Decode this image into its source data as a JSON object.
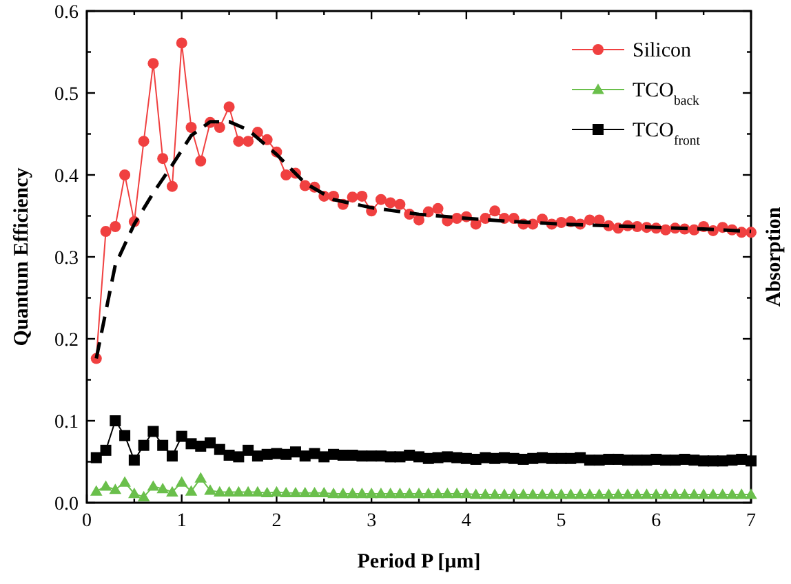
{
  "chart_data": {
    "type": "line",
    "xlabel": "Period P [µm]",
    "ylabel": "Quantum Efficiency",
    "y2label": "Absorption",
    "xlim": [
      0,
      7
    ],
    "xticks": [
      0,
      {
        "value": 0.5,
        "label": null
      },
      1,
      {
        "value": 1.5,
        "label": null
      },
      2,
      {
        "value": 2.5,
        "label": null
      },
      3,
      {
        "value": 3.5,
        "label": null
      },
      4,
      {
        "value": 4.5,
        "label": null
      },
      5,
      {
        "value": 5.5,
        "label": null
      },
      6,
      {
        "value": 6.5,
        "label": null
      },
      7
    ],
    "ylim": [
      0,
      0.6
    ],
    "yticks": [
      {
        "value": 0,
        "label": "0.0"
      },
      {
        "value": 0.05,
        "label": null
      },
      0.1,
      {
        "value": 0.15,
        "label": null
      },
      0.2,
      {
        "value": 0.25,
        "label": null
      },
      0.3,
      {
        "value": 0.35,
        "label": null
      },
      0.4,
      {
        "value": 0.45,
        "label": null
      },
      0.5,
      {
        "value": 0.55,
        "label": null
      },
      0.6
    ],
    "grid": false,
    "legend": "top right",
    "x": [
      0.1,
      0.2,
      0.3,
      0.4,
      0.5,
      0.6,
      0.7,
      0.8,
      0.9,
      1.0,
      1.1,
      1.2,
      1.3,
      1.4,
      1.5,
      1.6,
      1.7,
      1.8,
      1.9,
      2.0,
      2.1,
      2.2,
      2.3,
      2.4,
      2.5,
      2.6,
      2.7,
      2.8,
      2.9,
      3.0,
      3.1,
      3.2,
      3.3,
      3.4,
      3.5,
      3.6,
      3.7,
      3.8,
      3.9,
      4.0,
      4.1,
      4.2,
      4.3,
      4.4,
      4.5,
      4.6,
      4.7,
      4.8,
      4.9,
      5.0,
      5.1,
      5.2,
      5.3,
      5.4,
      5.5,
      5.6,
      5.7,
      5.8,
      5.9,
      6.0,
      6.1,
      6.2,
      6.3,
      6.4,
      6.5,
      6.6,
      6.7,
      6.8,
      6.9,
      7.0
    ],
    "series": [
      {
        "name": "Silicon",
        "color": "#f04040",
        "marker": "circle",
        "line_style": "solid",
        "values": [
          0.176,
          0.331,
          0.337,
          0.4,
          0.343,
          0.441,
          0.536,
          0.42,
          0.386,
          0.561,
          0.458,
          0.417,
          0.464,
          0.458,
          0.483,
          0.441,
          0.441,
          0.452,
          0.443,
          0.428,
          0.4,
          0.402,
          0.387,
          0.385,
          0.374,
          0.374,
          0.364,
          0.373,
          0.374,
          0.356,
          0.37,
          0.366,
          0.364,
          0.352,
          0.345,
          0.355,
          0.359,
          0.344,
          0.347,
          0.349,
          0.34,
          0.347,
          0.356,
          0.347,
          0.347,
          0.34,
          0.34,
          0.346,
          0.34,
          0.342,
          0.343,
          0.34,
          0.345,
          0.345,
          0.338,
          0.335,
          0.338,
          0.337,
          0.336,
          0.335,
          0.333,
          0.335,
          0.334,
          0.333,
          0.337,
          0.332,
          0.336,
          0.333,
          0.33,
          0.33
        ]
      },
      {
        "name": "TCO$_{back}$",
        "color": "#6abf4b",
        "marker": "triangle",
        "line_style": "solid",
        "values": [
          0.014,
          0.02,
          0.016,
          0.025,
          0.011,
          0.007,
          0.02,
          0.017,
          0.013,
          0.025,
          0.014,
          0.03,
          0.015,
          0.013,
          0.013,
          0.013,
          0.013,
          0.013,
          0.012,
          0.013,
          0.012,
          0.012,
          0.012,
          0.012,
          0.012,
          0.011,
          0.011,
          0.011,
          0.011,
          0.011,
          0.011,
          0.011,
          0.011,
          0.011,
          0.011,
          0.011,
          0.011,
          0.011,
          0.011,
          0.011,
          0.01,
          0.01,
          0.01,
          0.01,
          0.01,
          0.01,
          0.01,
          0.01,
          0.01,
          0.01,
          0.01,
          0.01,
          0.01,
          0.01,
          0.01,
          0.01,
          0.01,
          0.01,
          0.01,
          0.01,
          0.01,
          0.01,
          0.01,
          0.01,
          0.01,
          0.01,
          0.01,
          0.01,
          0.01,
          0.01
        ]
      },
      {
        "name": "TCO$_{front}$",
        "color": "#000000",
        "marker": "square",
        "line_style": "solid",
        "values": [
          0.055,
          0.064,
          0.1,
          0.082,
          0.052,
          0.07,
          0.087,
          0.07,
          0.057,
          0.081,
          0.072,
          0.069,
          0.073,
          0.065,
          0.058,
          0.056,
          0.064,
          0.057,
          0.059,
          0.06,
          0.059,
          0.062,
          0.057,
          0.06,
          0.056,
          0.059,
          0.058,
          0.058,
          0.057,
          0.057,
          0.057,
          0.056,
          0.056,
          0.058,
          0.056,
          0.054,
          0.055,
          0.056,
          0.055,
          0.054,
          0.053,
          0.055,
          0.054,
          0.055,
          0.054,
          0.053,
          0.054,
          0.055,
          0.054,
          0.054,
          0.054,
          0.055,
          0.052,
          0.052,
          0.053,
          0.053,
          0.052,
          0.052,
          0.052,
          0.053,
          0.052,
          0.052,
          0.053,
          0.052,
          0.051,
          0.051,
          0.051,
          0.052,
          0.053,
          0.051
        ]
      },
      {
        "color": "#000000",
        "marker": "none",
        "line_style": "dashed",
        "x": [
          0.1,
          0.3,
          0.5,
          0.7,
          0.9,
          1.1,
          1.3,
          1.5,
          1.7,
          2.0,
          2.3,
          2.6,
          3.0,
          3.5,
          4.0,
          4.5,
          5.0,
          5.5,
          6.0,
          6.5,
          7.0
        ],
        "values": [
          0.176,
          0.29,
          0.34,
          0.378,
          0.412,
          0.448,
          0.465,
          0.465,
          0.455,
          0.425,
          0.39,
          0.37,
          0.36,
          0.352,
          0.347,
          0.343,
          0.34,
          0.338,
          0.336,
          0.334,
          0.331
        ]
      }
    ]
  }
}
